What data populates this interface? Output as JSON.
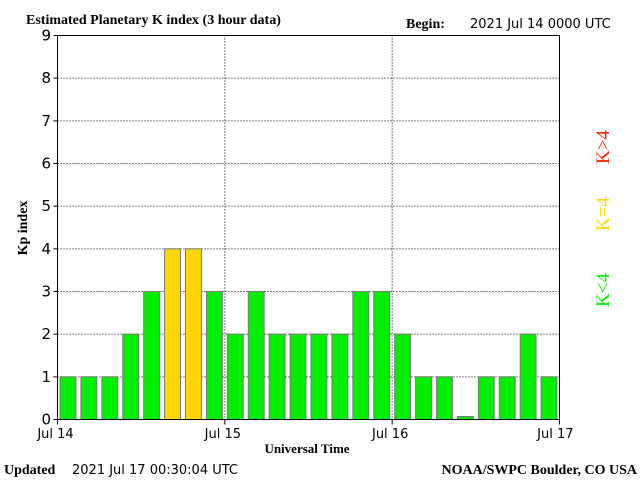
{
  "header": {
    "title": "Estimated Planetary K index (3 hour data)",
    "begin_label": "Begin:",
    "begin_value": "2021 Jul 14 0000 UTC"
  },
  "footer": {
    "updated_label": "Updated",
    "updated_value": "2021 Jul 17 00:30:04 UTC",
    "source": "NOAA/SWPC Boulder, CO USA"
  },
  "legend": {
    "low": "K<4",
    "mid": "K=4",
    "high": "K>4"
  },
  "colors": {
    "low": "#00ee00",
    "mid": "#ffd700",
    "high": "#ff2200",
    "bar_outline": "#7a7a7a",
    "axis": "#000000",
    "grid": "#000000"
  },
  "chart_data": {
    "type": "bar",
    "title": "Estimated Planetary K index (3 hour data)",
    "xlabel": "Universal Time",
    "ylabel": "Kp index",
    "ylim": [
      0,
      9
    ],
    "yticks": [
      0,
      1,
      2,
      3,
      4,
      5,
      6,
      7,
      8,
      9
    ],
    "xtick_labels": [
      "Jul 14",
      "Jul 15",
      "Jul 16",
      "Jul 17"
    ],
    "grid": true,
    "legend_placement": "right",
    "values": [
      1,
      1,
      1,
      2,
      3,
      4,
      4,
      3,
      2,
      3,
      2,
      2,
      2,
      2,
      3,
      3,
      2,
      1,
      1,
      0.07,
      1,
      1,
      2,
      1
    ]
  }
}
